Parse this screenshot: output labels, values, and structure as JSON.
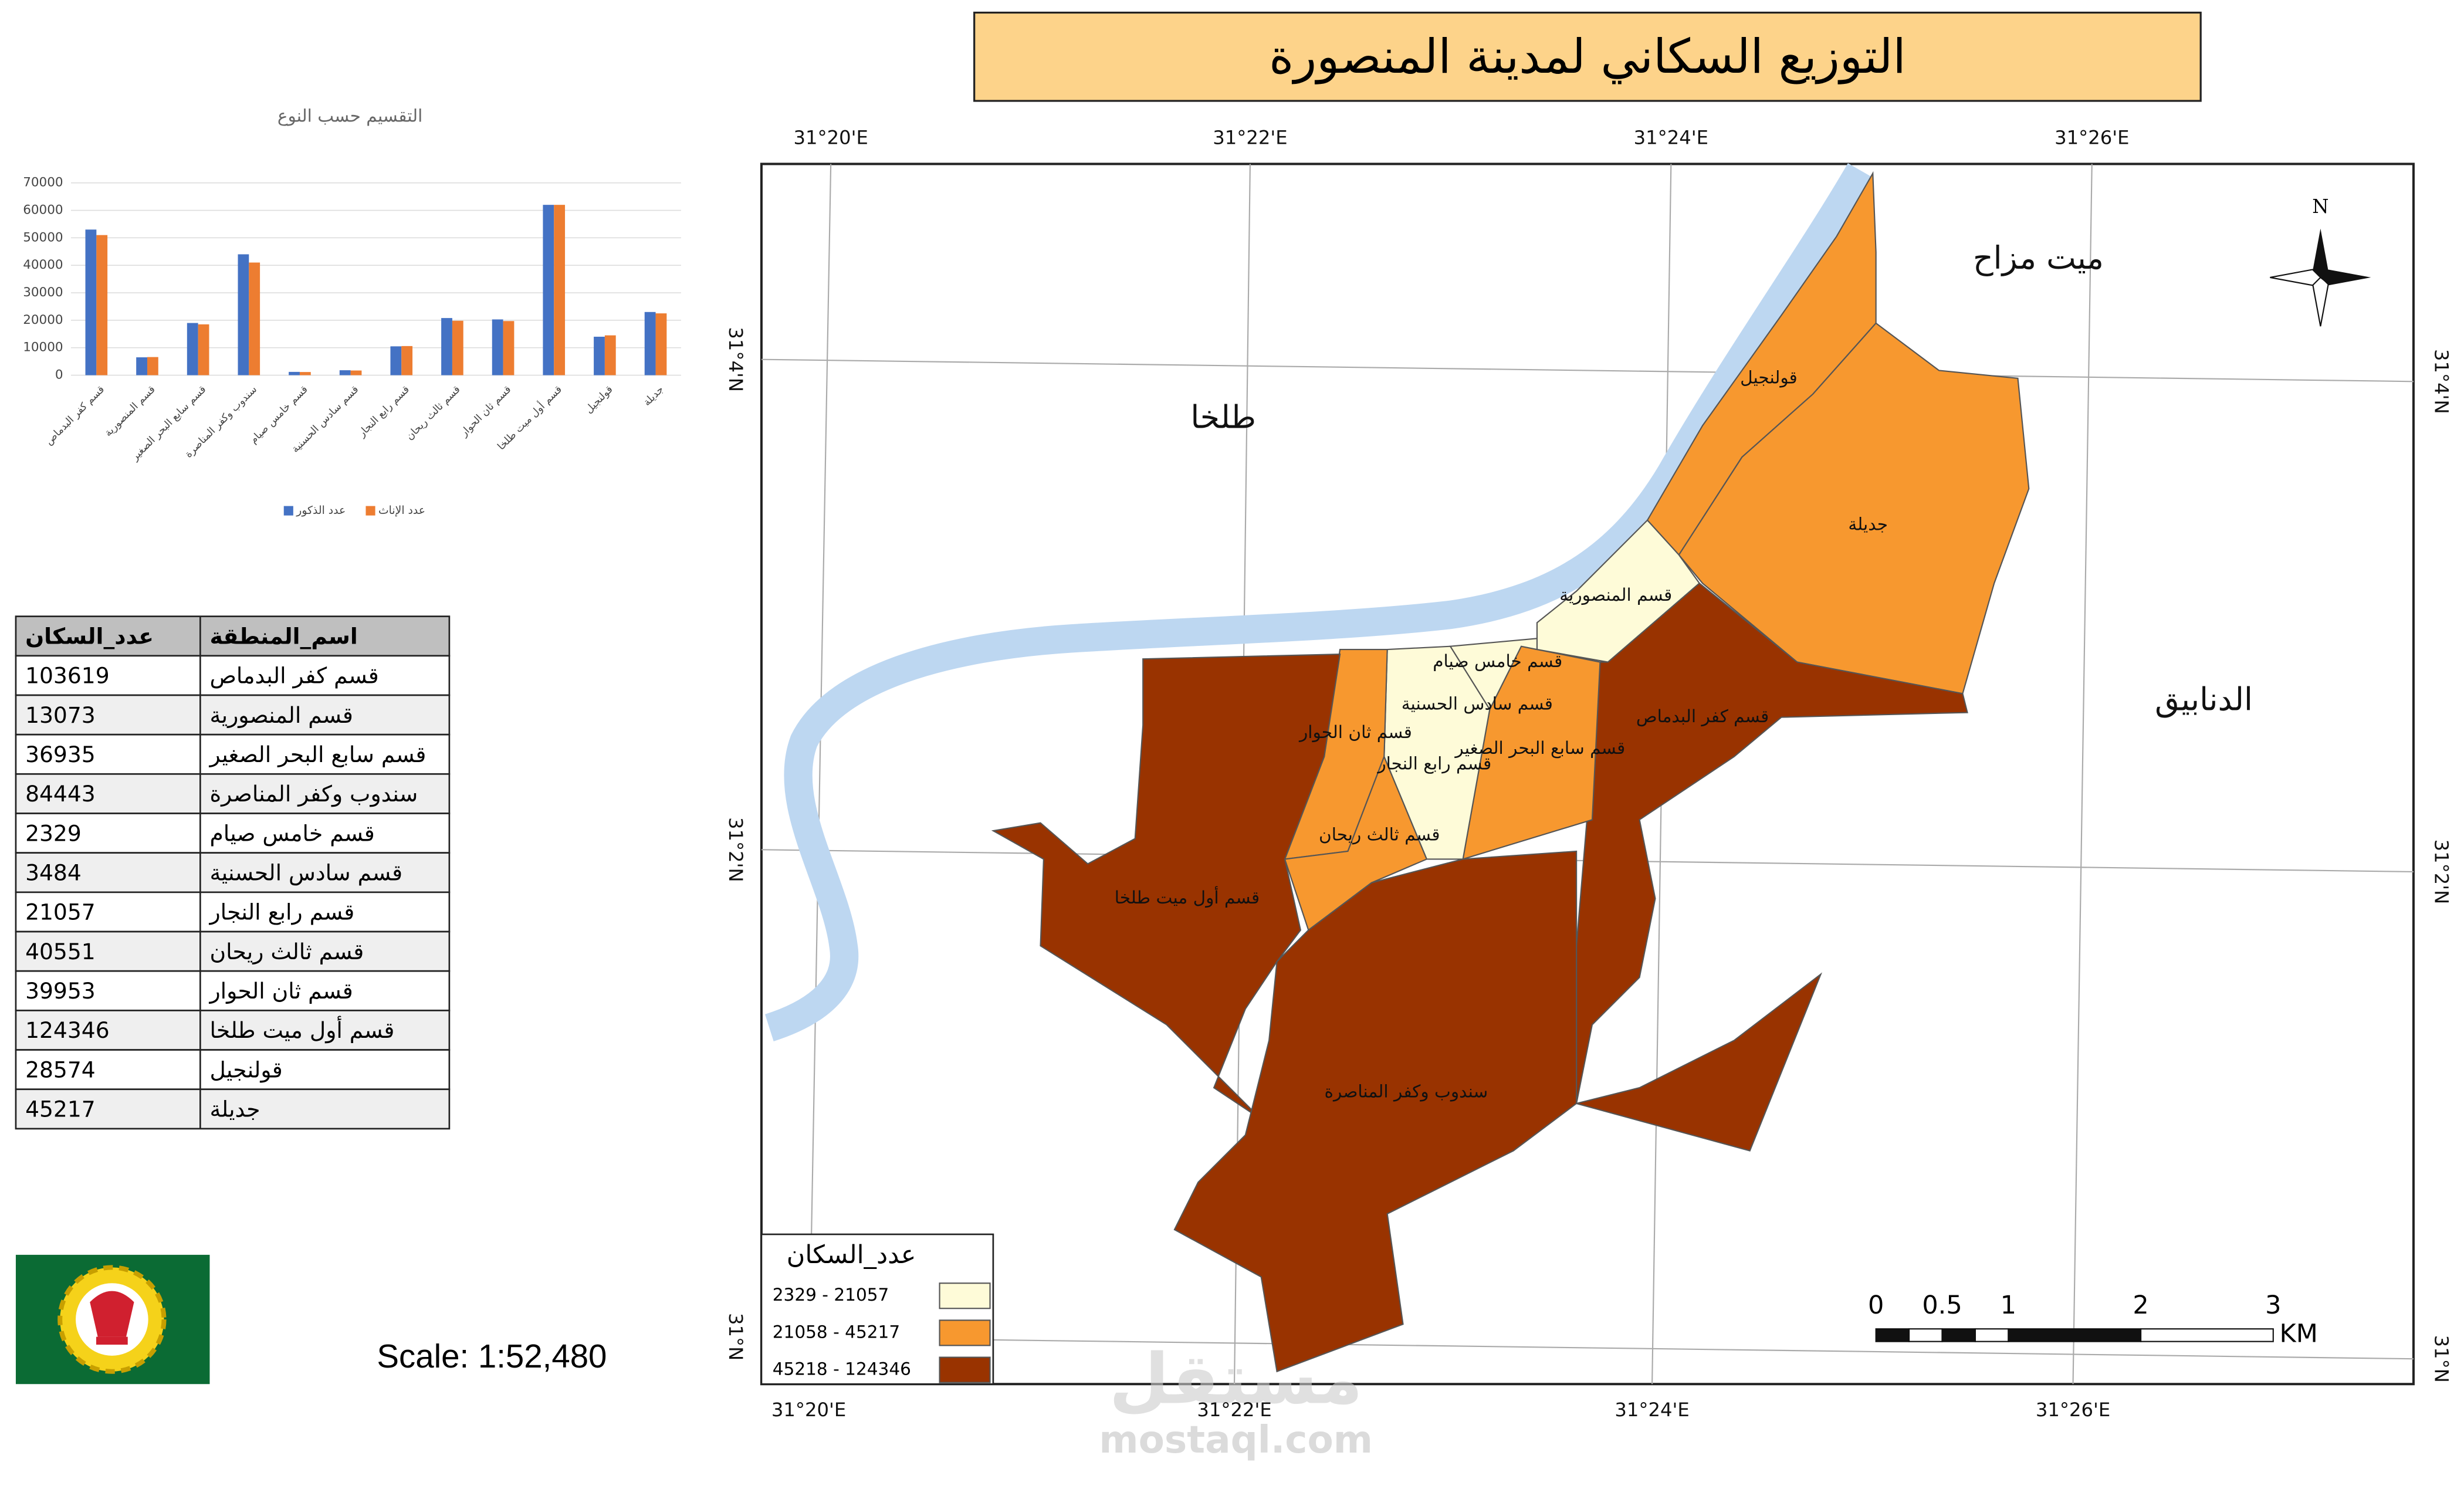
{
  "title": "التوزيع السكاني لمدينة المنصورة",
  "chart_data": {
    "type": "bar",
    "title": "التقسيم حسب النوع",
    "categories": [
      "قسم كفر البدماص",
      "قسم المنصورية",
      "قسم سابع البحر الصغير",
      "سندوب وكفر المناصرة",
      "قسم خامس صيام",
      "قسم سادس الحسنية",
      "قسم رابع النجار",
      "قسم ثالث ريحان",
      "قسم ثان الحوار",
      "قسم أول ميت طلخا",
      "قولنجيل",
      "جديلة"
    ],
    "series": [
      {
        "name": "عدد الذكور",
        "color": "#4472c4",
        "values": [
          53000,
          6500,
          19000,
          44000,
          1200,
          1800,
          10500,
          20800,
          20300,
          62000,
          14000,
          23000
        ]
      },
      {
        "name": "عدد الإناث",
        "color": "#ed7d31",
        "values": [
          51000,
          6600,
          18500,
          41000,
          1150,
          1700,
          10600,
          19800,
          19700,
          62000,
          14500,
          22500
        ]
      }
    ],
    "ylim": [
      0,
      70000
    ],
    "yticks": [
      0,
      10000,
      20000,
      30000,
      40000,
      50000,
      60000,
      70000
    ],
    "grid": true
  },
  "table": {
    "header": [
      "عدد_السكان",
      "اسم_المنطقة"
    ],
    "rows": [
      [
        "103619",
        "قسم كفر البدماص"
      ],
      [
        "13073",
        "قسم المنصورية"
      ],
      [
        "36935",
        "قسم سابع البحر الصغير"
      ],
      [
        "84443",
        "سندوب وكفر المناصرة"
      ],
      [
        "2329",
        "قسم خامس صيام"
      ],
      [
        "3484",
        "قسم سادس الحسنية"
      ],
      [
        "21057",
        "قسم رابع النجار"
      ],
      [
        "40551",
        "قسم ثالث ريحان"
      ],
      [
        "39953",
        "قسم ثان الحوار"
      ],
      [
        "124346",
        "قسم أول ميت طلخا"
      ],
      [
        "28574",
        "قولنجيل"
      ],
      [
        "45217",
        "جديلة"
      ]
    ]
  },
  "map": {
    "lon_labels": [
      "31°20'E",
      "31°22'E",
      "31°24'E",
      "31°26'E"
    ],
    "lat_labels": [
      "31°4'N",
      "31°2'N",
      "31°N"
    ],
    "places": [
      "ميت مزاح",
      "طلخا",
      "الدنابيق"
    ],
    "regions": [
      "قولنجيل",
      "جديلة",
      "قسم المنصورية",
      "قسم كفر البدماص",
      "قسم سابع البحر الصغير",
      "قسم رابع النجار",
      "قسم خامس صيام",
      "قسم سادس الحسنية",
      "قسم ثان الحوار",
      "قسم ثالث ريحان",
      "قسم أول ميت طلخا",
      "سندوب وكفر المناصرة"
    ],
    "north": "N",
    "legend": {
      "title": "عدد_السكان",
      "classes": [
        {
          "label": "2329 - 21057",
          "color": "#fefbd8"
        },
        {
          "label": "21058 - 45217",
          "color": "#f7982f"
        },
        {
          "label": "45218 - 124346",
          "color": "#993300"
        }
      ]
    },
    "scalebar": {
      "labels": [
        "0",
        "0.5",
        "1",
        "2",
        "3"
      ],
      "unit": "KM"
    }
  },
  "scale": "Scale: 1:52,480",
  "watermark": [
    "مستقل",
    "mostaql.com"
  ]
}
